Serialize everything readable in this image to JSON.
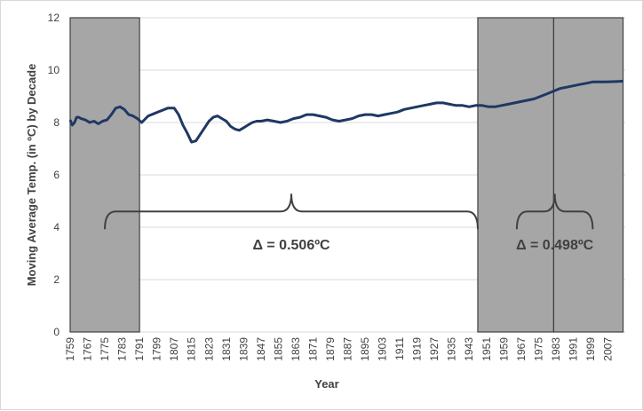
{
  "chart_data": {
    "type": "line",
    "xlabel": "Year",
    "ylabel": "Moving Average Temp. (in ºC) by Decade",
    "ylim": [
      0,
      12
    ],
    "yticks": [
      0,
      2,
      4,
      6,
      8,
      10,
      12
    ],
    "xlim": [
      1759,
      2015
    ],
    "xticks": [
      "1759",
      "1767",
      "1775",
      "1783",
      "1791",
      "1799",
      "1807",
      "1815",
      "1823",
      "1831",
      "1839",
      "1847",
      "1855",
      "1863",
      "1871",
      "1879",
      "1887",
      "1895",
      "1903",
      "1911",
      "1919",
      "1927",
      "1935",
      "1943",
      "1951",
      "1959",
      "1967",
      "1975",
      "1983",
      "1991",
      "1999",
      "2007"
    ],
    "grid": "horizontal",
    "series": [
      {
        "color": "#1f3864",
        "x": [
          1759,
          1760,
          1761,
          1762,
          1763,
          1764,
          1766,
          1768,
          1770,
          1772,
          1774,
          1776,
          1778,
          1780,
          1782,
          1784,
          1786,
          1788,
          1790,
          1792,
          1795,
          1798,
          1801,
          1804,
          1807,
          1809,
          1811,
          1813,
          1815,
          1817,
          1819,
          1821,
          1823,
          1825,
          1827,
          1829,
          1831,
          1833,
          1835,
          1837,
          1839,
          1841,
          1843,
          1845,
          1847,
          1850,
          1853,
          1856,
          1859,
          1862,
          1865,
          1868,
          1871,
          1874,
          1877,
          1880,
          1883,
          1886,
          1889,
          1892,
          1895,
          1898,
          1901,
          1904,
          1907,
          1910,
          1913,
          1916,
          1919,
          1922,
          1925,
          1928,
          1931,
          1934,
          1937,
          1940,
          1943,
          1946,
          1949,
          1952,
          1955,
          1958,
          1961,
          1964,
          1967,
          1970,
          1973,
          1976,
          1979,
          1982,
          1985,
          1988,
          1991,
          1994,
          1997,
          2000,
          2003,
          2006,
          2009,
          2012,
          2014
        ],
        "values": [
          8.1,
          7.9,
          8.0,
          8.2,
          8.2,
          8.15,
          8.1,
          8.0,
          8.05,
          7.95,
          8.05,
          8.1,
          8.3,
          8.55,
          8.6,
          8.5,
          8.3,
          8.25,
          8.15,
          8.0,
          8.25,
          8.35,
          8.45,
          8.55,
          8.55,
          8.3,
          7.9,
          7.6,
          7.25,
          7.3,
          7.55,
          7.8,
          8.05,
          8.2,
          8.25,
          8.15,
          8.05,
          7.85,
          7.75,
          7.7,
          7.8,
          7.9,
          8.0,
          8.05,
          8.05,
          8.1,
          8.05,
          8.0,
          8.05,
          8.15,
          8.2,
          8.3,
          8.3,
          8.25,
          8.2,
          8.1,
          8.05,
          8.1,
          8.15,
          8.25,
          8.3,
          8.3,
          8.25,
          8.3,
          8.35,
          8.4,
          8.5,
          8.55,
          8.6,
          8.65,
          8.7,
          8.75,
          8.75,
          8.7,
          8.65,
          8.65,
          8.6,
          8.65,
          8.65,
          8.6,
          8.6,
          8.65,
          8.7,
          8.75,
          8.8,
          8.85,
          8.9,
          9.0,
          9.1,
          9.2,
          9.3,
          9.35,
          9.4,
          9.45,
          9.5,
          9.55,
          9.55,
          9.55,
          9.56,
          9.57,
          9.58
        ]
      }
    ],
    "shaded_regions": [
      [
        1759,
        1791
      ],
      [
        1947,
        1982
      ],
      [
        1982,
        2014
      ]
    ],
    "annotations": [
      {
        "text": "Δ = 0.506ºC",
        "from": 1775,
        "to": 1947
      },
      {
        "text": "Δ = 0.498ºC",
        "from": 1965,
        "to": 2000
      }
    ]
  }
}
